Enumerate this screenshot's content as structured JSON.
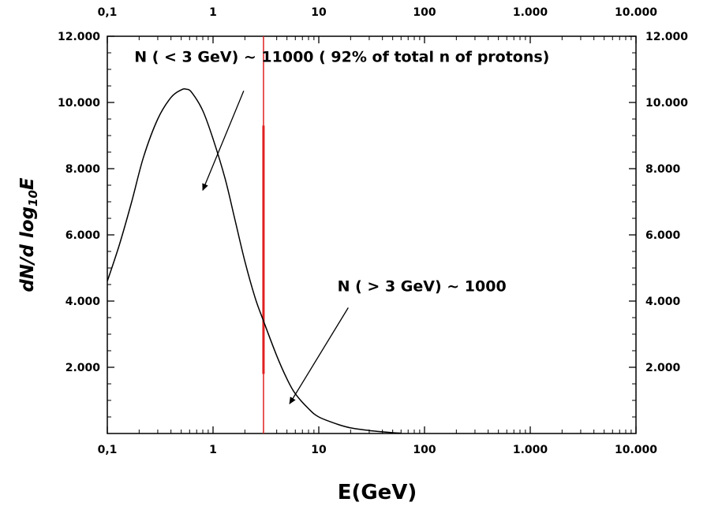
{
  "chart_data": {
    "type": "line",
    "xlabel": "E(GeV)",
    "ylabel": {
      "main": "dN/d log",
      "subscript": "10",
      "suffix": "E"
    },
    "x_scale": "log",
    "xlim": [
      0.1,
      10000
    ],
    "ylim": [
      0,
      12000
    ],
    "x_ticks": [
      {
        "value": 0.1,
        "label": "0,1"
      },
      {
        "value": 1,
        "label": "1"
      },
      {
        "value": 10,
        "label": "10"
      },
      {
        "value": 100,
        "label": "100"
      },
      {
        "value": 1000,
        "label": "1.000"
      },
      {
        "value": 10000,
        "label": "10.000"
      }
    ],
    "y_ticks": [
      {
        "value": 2000,
        "label": "2.000"
      },
      {
        "value": 4000,
        "label": "4.000"
      },
      {
        "value": 6000,
        "label": "6.000"
      },
      {
        "value": 8000,
        "label": "8.000"
      },
      {
        "value": 10000,
        "label": "10.000"
      },
      {
        "value": 12000,
        "label": "12.000"
      }
    ],
    "grid": false,
    "series": [
      {
        "color": "#000000",
        "x": [
          0.1,
          0.13,
          0.17,
          0.22,
          0.3,
          0.4,
          0.5,
          0.56,
          0.63,
          0.8,
          1.0,
          1.3,
          1.6,
          2.0,
          2.5,
          3.0,
          4.0,
          5.0,
          6.0,
          8.0,
          10,
          15,
          20,
          30,
          40,
          50,
          60
        ],
        "y": [
          4600,
          5700,
          7000,
          8350,
          9500,
          10150,
          10380,
          10400,
          10300,
          9750,
          8900,
          7700,
          6500,
          5200,
          4100,
          3400,
          2350,
          1650,
          1200,
          750,
          500,
          280,
          170,
          90,
          50,
          25,
          10
        ]
      }
    ],
    "markers": {
      "threshold_line": {
        "x": 3,
        "color": "#e02020",
        "thick_range": [
          1800,
          9300
        ]
      }
    },
    "annotations": [
      {
        "text": "N ( < 3 GeV) ~ 11000 ( 92% of total n of protons)",
        "x": 0.18,
        "y": 11230
      },
      {
        "text": "N ( > 3 GeV) ~ 1000",
        "x": 15,
        "y": 4300
      }
    ],
    "arrows": [
      {
        "from": [
          1.95,
          10350
        ],
        "to": [
          0.8,
          7350
        ]
      },
      {
        "from": [
          19,
          3800
        ],
        "to": [
          5.3,
          900
        ]
      }
    ]
  }
}
